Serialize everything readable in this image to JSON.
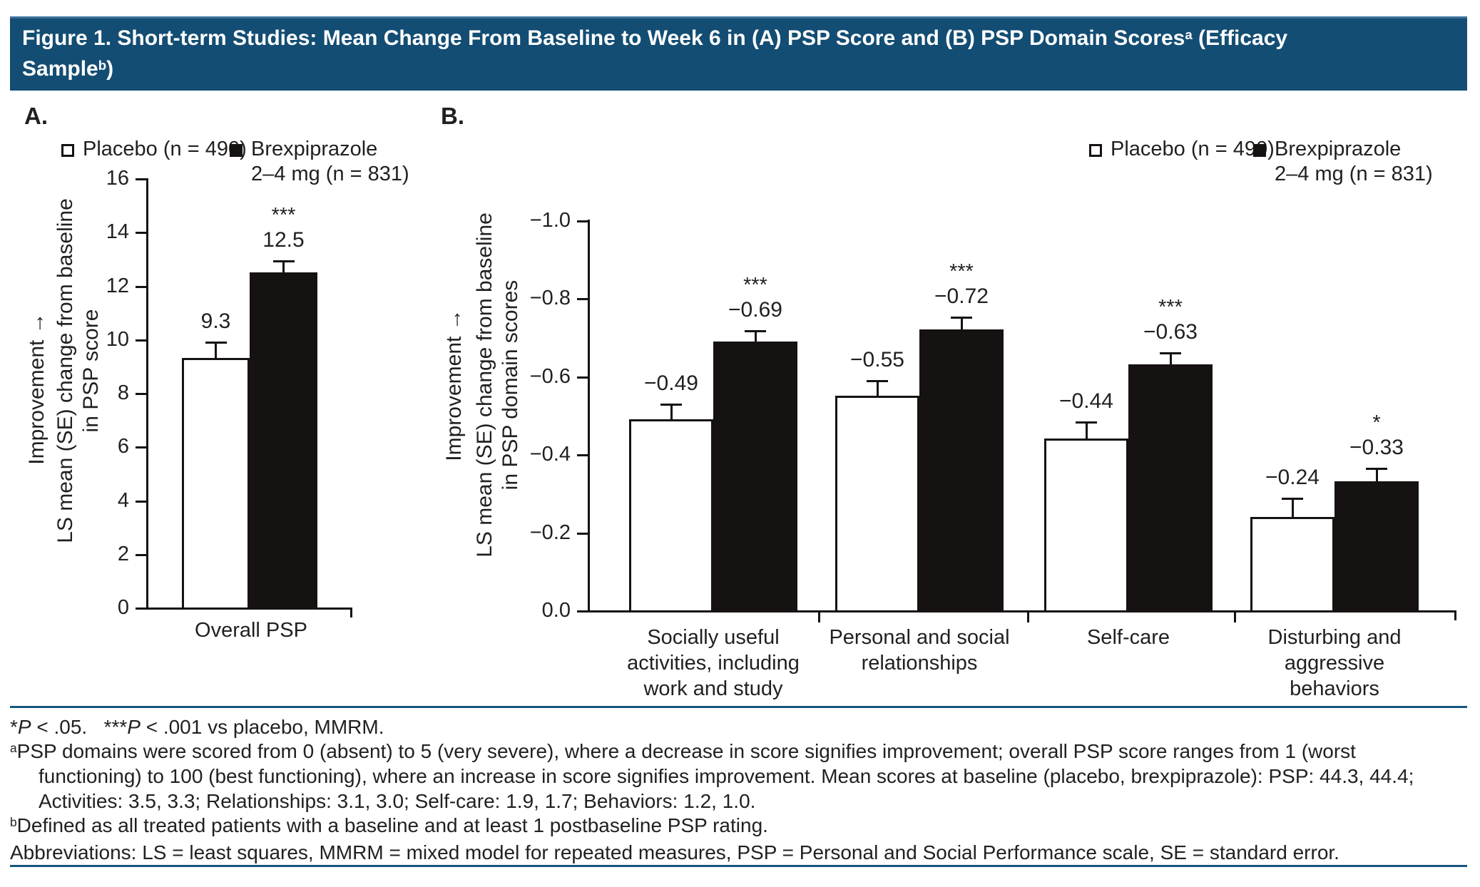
{
  "title": {
    "part1": "Figure 1. Short-term Studies: Mean Change From Baseline to Week 6 in (A) PSP Score and (B) PSP Domain Scores",
    "sup1": "a",
    "part2": " (Efficacy",
    "line2_part1": "Sample",
    "sup2": "b",
    "line2_part2": ")"
  },
  "panel_a": {
    "label": "A."
  },
  "panel_b": {
    "label": "B."
  },
  "legend": {
    "placebo": "Placebo (n = 490)",
    "brex_line1": "Brexpiprazole",
    "brex_line2": "2–4 mg (n = 831)"
  },
  "colors": {
    "header_bg": "#134d73",
    "header_top_edge": "#3c719a",
    "rule_blue": "#17557f",
    "bar_black": "#161211",
    "bar_white": "#ffffff",
    "text": "#221f1f"
  },
  "chart_data": [
    {
      "id": "A",
      "type": "bar",
      "panel": "A",
      "legend_position": "top",
      "grid": false,
      "ylabel_improvement": "Improvement →",
      "ylabel_lines": [
        "LS mean (SE) change from baseline",
        "in PSP score"
      ],
      "ylim": [
        0,
        16
      ],
      "yticks": [
        {
          "value": 0,
          "label": "0"
        },
        {
          "value": 2,
          "label": "2"
        },
        {
          "value": 4,
          "label": "4"
        },
        {
          "value": 6,
          "label": "6"
        },
        {
          "value": 8,
          "label": "8"
        },
        {
          "value": 10,
          "label": "10"
        },
        {
          "value": 12,
          "label": "12"
        },
        {
          "value": 14,
          "label": "14"
        },
        {
          "value": 16,
          "label": "16"
        }
      ],
      "categories": [
        [
          "Overall PSP"
        ]
      ],
      "series": [
        {
          "key": "placebo",
          "name": "Placebo (n = 490)",
          "fill": "white",
          "values": [
            9.3
          ],
          "se": [
            0.6
          ],
          "value_labels": [
            "9.3"
          ],
          "sig": [
            ""
          ]
        },
        {
          "key": "brexpiprazole",
          "name": "Brexpiprazole 2–4 mg (n = 831)",
          "fill": "black",
          "values": [
            12.5
          ],
          "se": [
            0.45
          ],
          "value_labels": [
            "12.5"
          ],
          "sig": [
            "***"
          ]
        }
      ]
    },
    {
      "id": "B",
      "type": "bar",
      "panel": "B",
      "legend_position": "top",
      "grid": false,
      "ylabel_improvement": "Improvement →",
      "ylabel_lines": [
        "LS mean (SE) change from baseline",
        "in PSP domain scores"
      ],
      "ylim": [
        0,
        -1.0
      ],
      "yticks": [
        {
          "value": 0,
          "label": "0.0"
        },
        {
          "value": -0.2,
          "label": "−0.2"
        },
        {
          "value": -0.4,
          "label": "−0.4"
        },
        {
          "value": -0.6,
          "label": "−0.6"
        },
        {
          "value": -0.8,
          "label": "−0.8"
        },
        {
          "value": -1.0,
          "label": "−1.0"
        }
      ],
      "categories": [
        [
          "Socially useful",
          "activities, including",
          "work and study"
        ],
        [
          "Personal and social",
          "relationships"
        ],
        [
          "Self-care"
        ],
        [
          "Disturbing and",
          "aggressive",
          "behaviors"
        ]
      ],
      "series": [
        {
          "key": "placebo",
          "name": "Placebo (n = 490)",
          "fill": "white",
          "values": [
            -0.49,
            -0.55,
            -0.44,
            -0.24
          ],
          "se": [
            0.04,
            0.04,
            0.044,
            0.05
          ],
          "value_labels": [
            "−0.49",
            "−0.55",
            "−0.44",
            "−0.24"
          ],
          "sig": [
            "",
            "",
            "",
            ""
          ]
        },
        {
          "key": "brexpiprazole",
          "name": "Brexpiprazole 2–4 mg (n = 831)",
          "fill": "black",
          "values": [
            -0.69,
            -0.72,
            -0.63,
            -0.33
          ],
          "se": [
            0.03,
            0.033,
            0.031,
            0.035
          ],
          "value_labels": [
            "−0.69",
            "−0.72",
            "−0.63",
            "−0.33"
          ],
          "sig": [
            "***",
            "***",
            "***",
            "*"
          ]
        }
      ]
    }
  ],
  "footnotes": {
    "line1": [
      {
        "t": "*"
      },
      {
        "t": "P",
        "style": "i"
      },
      {
        "t": " < .05.   ***"
      },
      {
        "t": "P",
        "style": "i"
      },
      {
        "t": " < .001 vs placebo, MMRM."
      }
    ],
    "line2": [
      {
        "t": "a",
        "style": "sup"
      },
      {
        "t": "PSP domains were scored from 0 (absent) to 5 (very severe), where a decrease in score signifies improvement; overall PSP score ranges from 1 (worst"
      }
    ],
    "line3": [
      {
        "t": "functioning) to 100 (best functioning), where an increase in score signifies improvement. Mean scores at baseline (placebo, brexpiprazole): PSP: 44.3, 44.4;"
      }
    ],
    "line4": [
      {
        "t": "Activities: 3.5, 3.3; Relationships: 3.1, 3.0; Self-care: 1.9, 1.7; Behaviors: 1.2, 1.0."
      }
    ],
    "line5": [
      {
        "t": "b",
        "style": "sup"
      },
      {
        "t": "Defined as all treated patients with a baseline and at least 1 postbaseline PSP rating."
      }
    ],
    "line6": [
      {
        "t": "Abbreviations: LS = least squares, MMRM = mixed model for repeated measures, PSP = Personal and Social Performance scale, SE = standard error."
      }
    ]
  }
}
